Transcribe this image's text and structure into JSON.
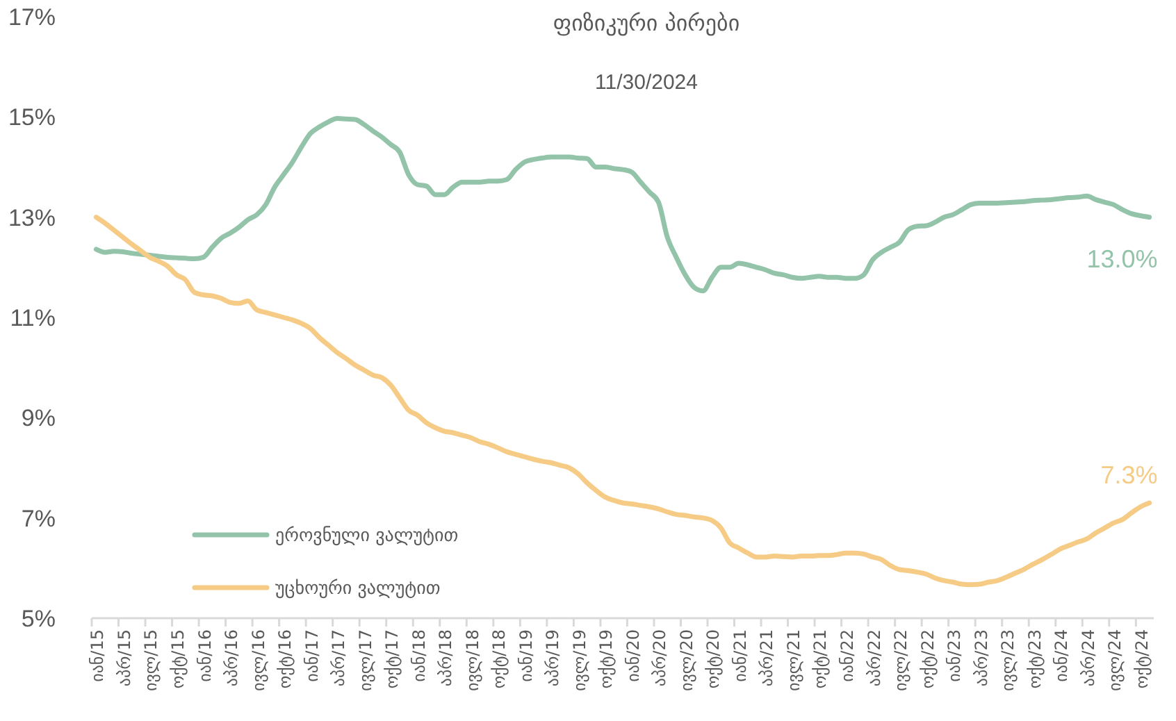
{
  "chart_data": {
    "type": "line",
    "title": "ფიზიკური პირები",
    "subtitle": "11/30/2024",
    "categories": [
      "იან/15",
      null,
      null,
      "აპრ/15",
      null,
      null,
      "ივლ/15",
      null,
      null,
      "ოქტ/15",
      null,
      null,
      "იან/16",
      null,
      null,
      "აპრ/16",
      null,
      null,
      "ივლ/16",
      null,
      null,
      "ოქტ/16",
      null,
      null,
      "იან/17",
      null,
      null,
      "აპრ/17",
      null,
      null,
      "ივლ/17",
      null,
      null,
      "ოქტ/17",
      null,
      null,
      "იან/18",
      null,
      null,
      "აპრ/18",
      null,
      null,
      "ივლ/18",
      null,
      null,
      "ოქტ/18",
      null,
      null,
      "იან/19",
      null,
      null,
      "აპრ/19",
      null,
      null,
      "ივლ/19",
      null,
      null,
      "ოქტ/19",
      null,
      null,
      "იან/20",
      null,
      null,
      "აპრ/20",
      null,
      null,
      "ივლ/20",
      null,
      null,
      "ოქტ/20",
      null,
      null,
      "იან/21",
      null,
      null,
      "აპრ/21",
      null,
      null,
      "ივლ/21",
      null,
      null,
      "ოქტ/21",
      null,
      null,
      "იან/22",
      null,
      null,
      "აპრ/22",
      null,
      null,
      "ივლ/22",
      null,
      null,
      "ოქტ/22",
      null,
      null,
      "იან/23",
      null,
      null,
      "აპრ/23",
      null,
      null,
      "ივლ/23",
      null,
      null,
      "ოქტ/23",
      null,
      null,
      "იან/24",
      null,
      null,
      "აპრ/24",
      null,
      null,
      "ივლ/24",
      null,
      null,
      "ოქტ/24",
      null
    ],
    "series": [
      {
        "name": "ეროვნული ვალუტით",
        "color": "#93c4aa",
        "values": [
          12.36,
          12.3,
          12.32,
          12.31,
          12.28,
          12.26,
          12.24,
          12.22,
          12.2,
          12.19,
          12.18,
          12.17,
          12.2,
          12.4,
          12.58,
          12.68,
          12.8,
          12.95,
          13.05,
          13.25,
          13.6,
          13.85,
          14.1,
          14.4,
          14.67,
          14.8,
          14.9,
          14.97,
          14.96,
          14.95,
          14.85,
          14.72,
          14.6,
          14.45,
          14.3,
          13.85,
          13.65,
          13.62,
          13.45,
          13.45,
          13.6,
          13.7,
          13.7,
          13.7,
          13.72,
          13.72,
          13.75,
          13.95,
          14.1,
          14.15,
          14.18,
          14.2,
          14.2,
          14.2,
          14.18,
          14.17,
          14.0,
          14.0,
          13.97,
          13.95,
          13.9,
          13.7,
          13.5,
          13.3,
          12.6,
          12.2,
          11.85,
          11.6,
          11.53,
          11.8,
          12.0,
          12.0,
          12.08,
          12.05,
          12.0,
          11.95,
          11.88,
          11.85,
          11.8,
          11.78,
          11.8,
          11.82,
          11.8,
          11.8,
          11.78,
          11.78,
          11.85,
          12.15,
          12.3,
          12.4,
          12.5,
          12.75,
          12.82,
          12.83,
          12.9,
          13.0,
          13.05,
          13.15,
          13.25,
          13.28,
          13.28,
          13.28,
          13.29,
          13.3,
          13.31,
          13.33,
          13.34,
          13.35,
          13.37,
          13.39,
          13.4,
          13.42,
          13.35,
          13.3,
          13.25,
          13.15,
          13.07,
          13.03,
          13.0
        ],
        "value_labels": [
          null,
          null,
          null,
          null,
          null,
          null,
          null,
          null,
          null,
          null,
          null,
          null,
          null,
          null,
          null,
          null,
          null,
          null,
          null,
          null,
          null,
          null,
          null,
          null,
          null,
          null,
          null,
          null,
          null,
          null,
          null,
          null,
          null,
          null,
          null,
          null,
          null,
          null,
          null,
          null,
          null,
          null,
          null,
          null,
          null,
          null,
          null,
          null,
          null,
          null,
          null,
          null,
          null,
          null,
          null,
          null,
          null,
          null,
          null,
          null,
          null,
          null,
          null,
          null,
          null,
          null,
          null,
          null,
          null,
          null,
          null,
          null,
          null,
          null,
          null,
          null,
          null,
          null,
          null,
          null,
          null,
          null,
          null,
          null,
          null,
          null,
          null,
          null,
          null,
          null,
          null,
          null,
          null,
          null,
          null,
          null,
          null,
          null,
          null,
          null,
          null,
          null,
          null,
          null,
          null,
          null,
          null,
          null,
          null,
          null,
          null,
          null,
          null,
          null,
          null,
          null,
          null,
          null,
          "13.0%"
        ]
      },
      {
        "name": "უცხოური ვალუტით",
        "color": "#f5cb85",
        "values": [
          13.0,
          12.88,
          12.74,
          12.6,
          12.46,
          12.33,
          12.2,
          12.12,
          12.02,
          11.85,
          11.75,
          11.5,
          11.45,
          11.43,
          11.38,
          11.3,
          11.28,
          11.33,
          11.15,
          11.1,
          11.05,
          11.0,
          10.95,
          10.88,
          10.78,
          10.6,
          10.45,
          10.3,
          10.18,
          10.05,
          9.95,
          9.85,
          9.8,
          9.65,
          9.4,
          9.15,
          9.05,
          8.9,
          8.8,
          8.73,
          8.7,
          8.65,
          8.6,
          8.52,
          8.47,
          8.4,
          8.32,
          8.27,
          8.22,
          8.17,
          8.13,
          8.1,
          8.05,
          8.0,
          7.88,
          7.7,
          7.55,
          7.42,
          7.35,
          7.3,
          7.28,
          7.25,
          7.22,
          7.18,
          7.12,
          7.07,
          7.05,
          7.02,
          7.0,
          6.95,
          6.8,
          6.5,
          6.4,
          6.3,
          6.22,
          6.22,
          6.24,
          6.23,
          6.22,
          6.24,
          6.24,
          6.25,
          6.25,
          6.27,
          6.3,
          6.3,
          6.28,
          6.22,
          6.17,
          6.05,
          5.97,
          5.95,
          5.92,
          5.88,
          5.8,
          5.75,
          5.72,
          5.68,
          5.67,
          5.68,
          5.72,
          5.75,
          5.82,
          5.9,
          5.98,
          6.08,
          6.17,
          6.27,
          6.38,
          6.45,
          6.52,
          6.58,
          6.7,
          6.8,
          6.9,
          6.97,
          7.1,
          7.22,
          7.3
        ],
        "value_labels": [
          null,
          null,
          null,
          null,
          null,
          null,
          null,
          null,
          null,
          null,
          null,
          null,
          null,
          null,
          null,
          null,
          null,
          null,
          null,
          null,
          null,
          null,
          null,
          null,
          null,
          null,
          null,
          null,
          null,
          null,
          null,
          null,
          null,
          null,
          null,
          null,
          null,
          null,
          null,
          null,
          null,
          null,
          null,
          null,
          null,
          null,
          null,
          null,
          null,
          null,
          null,
          null,
          null,
          null,
          null,
          null,
          null,
          null,
          null,
          null,
          null,
          null,
          null,
          null,
          null,
          null,
          null,
          null,
          null,
          null,
          null,
          null,
          null,
          null,
          null,
          null,
          null,
          null,
          null,
          null,
          null,
          null,
          null,
          null,
          null,
          null,
          null,
          null,
          null,
          null,
          null,
          null,
          null,
          null,
          null,
          null,
          null,
          null,
          null,
          null,
          null,
          null,
          null,
          null,
          null,
          null,
          null,
          null,
          null,
          null,
          null,
          null,
          null,
          null,
          null,
          null,
          null,
          null,
          "7.3%"
        ]
      }
    ],
    "ylim": [
      5,
      17
    ],
    "yticks": [
      {
        "value": 5,
        "label": "5%"
      },
      {
        "value": 7,
        "label": "7%"
      },
      {
        "value": 9,
        "label": "9%"
      },
      {
        "value": 11,
        "label": "11%"
      },
      {
        "value": 13,
        "label": "13%"
      },
      {
        "value": 15,
        "label": "15%"
      },
      {
        "value": 17,
        "label": "17%"
      }
    ],
    "grid": false,
    "legend": "bottom left",
    "marker": "none",
    "line_style": "solid"
  }
}
